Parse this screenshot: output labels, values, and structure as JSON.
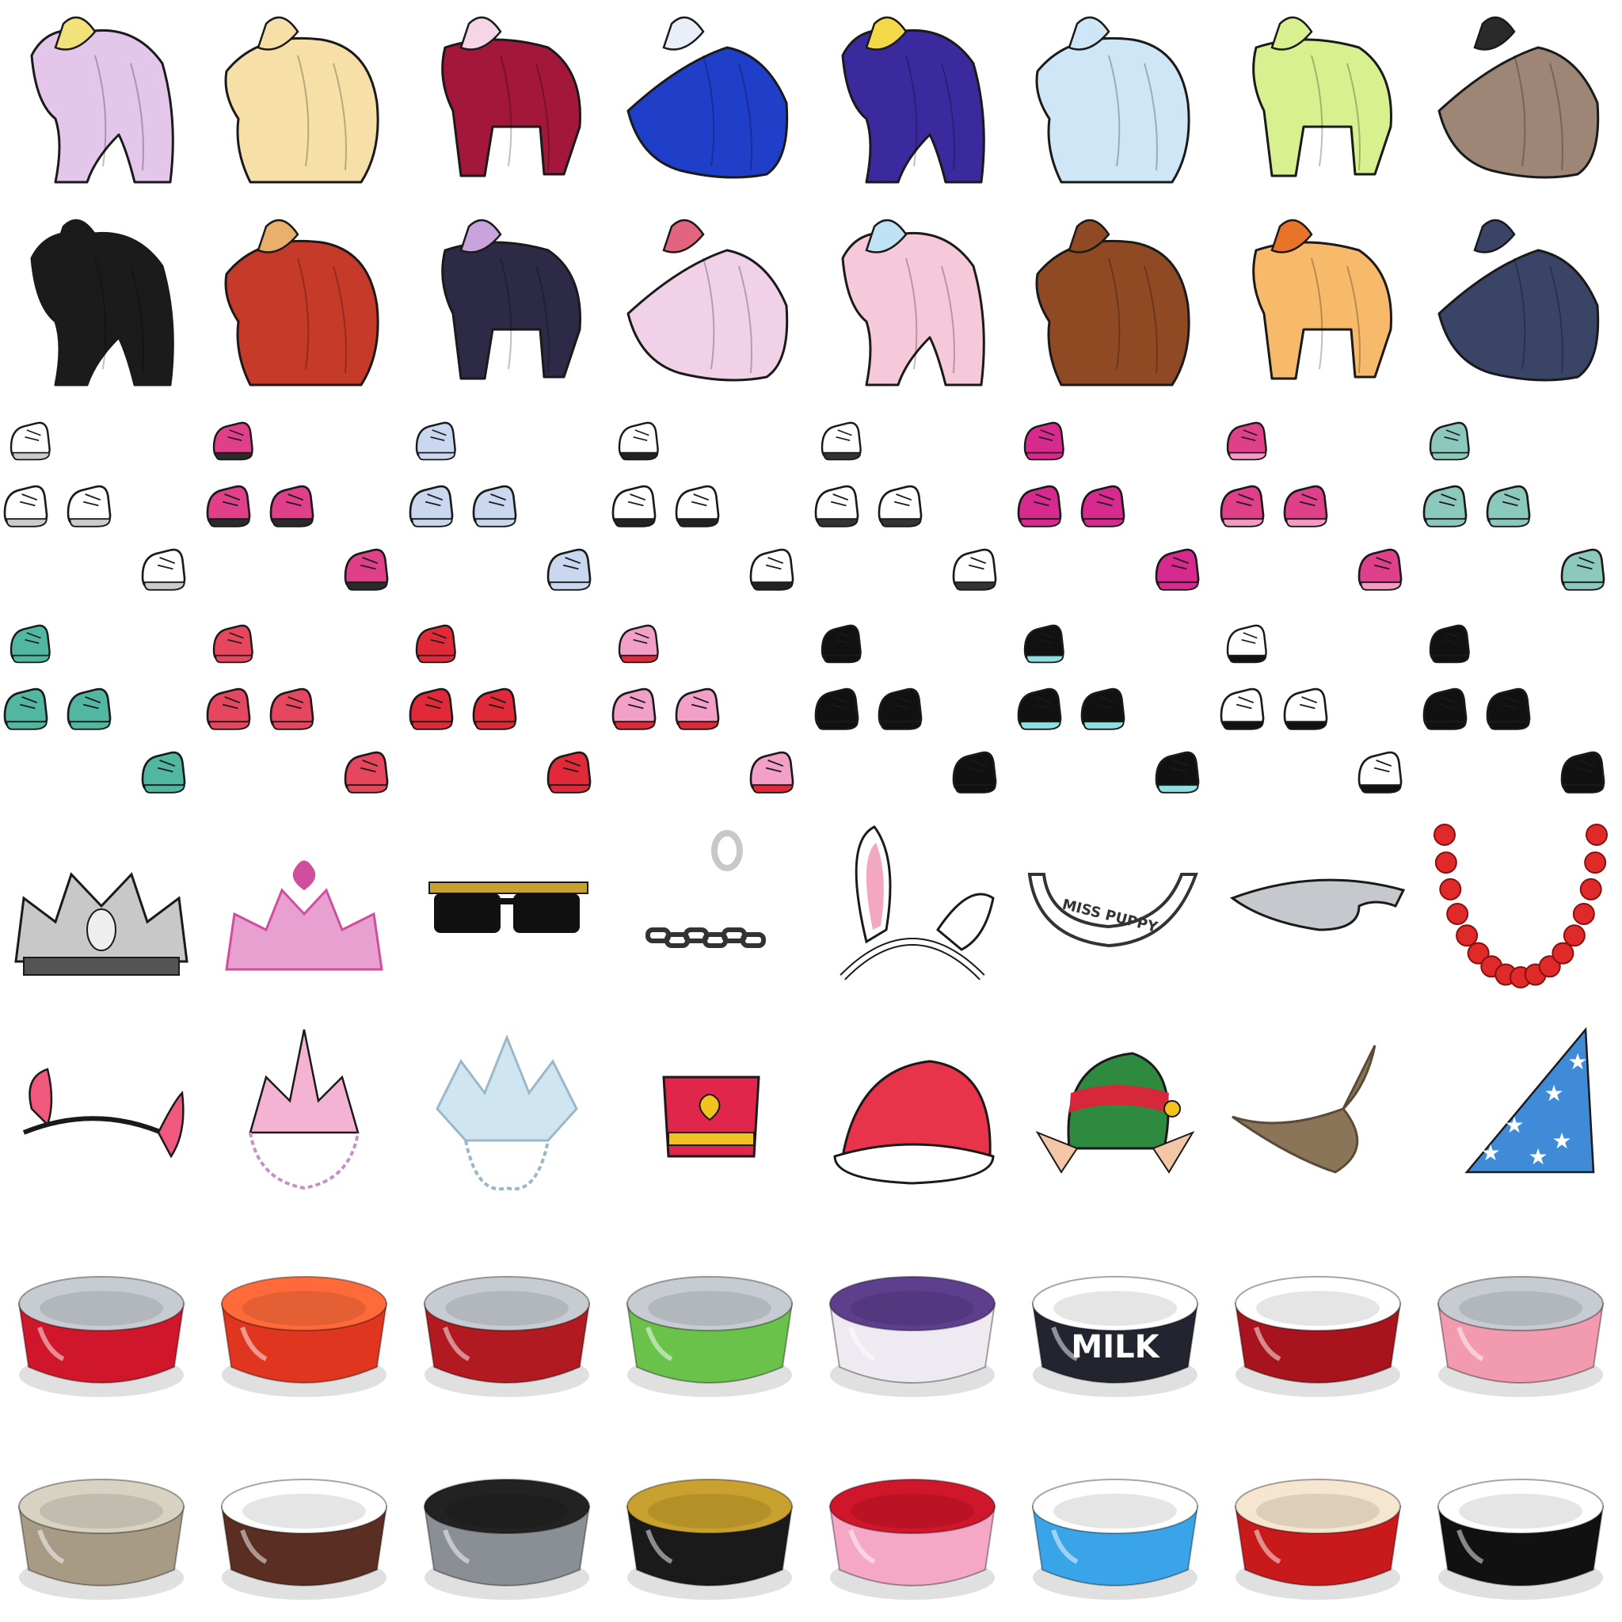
{
  "sprite_sheet": {
    "grid": {
      "columns": 8,
      "rows": 8
    },
    "rows": [
      {
        "category": "costumes",
        "items": [
          {
            "icon": "lilac-cape-costume",
            "colors": [
              "#e3c6ea",
              "#f2e27a"
            ]
          },
          {
            "icon": "cream-cape-costume",
            "colors": [
              "#f7dfa8",
              "#f7dfa8"
            ]
          },
          {
            "icon": "crimson-suit-costume",
            "colors": [
              "#a3173a",
              "#f6d6e6"
            ]
          },
          {
            "icon": "blue-suit-costume",
            "colors": [
              "#1f3fc8",
              "#e9eef8"
            ]
          },
          {
            "icon": "wizard-cape-star-costume",
            "colors": [
              "#3b2a9e",
              "#f3d84a"
            ]
          },
          {
            "icon": "fluffy-blue-costume",
            "colors": [
              "#cfe6f6",
              "#cfe6f6"
            ]
          },
          {
            "icon": "lime-bow-cape-costume",
            "colors": [
              "#d8f08e",
              "#d8f08e"
            ]
          },
          {
            "icon": "brown-tuxedo-costume",
            "colors": [
              "#9e8677",
              "#2a2a2a"
            ]
          }
        ]
      },
      {
        "category": "costumes",
        "items": [
          {
            "icon": "black-feather-costume",
            "colors": [
              "#1b1b1b",
              "#1b1b1b"
            ]
          },
          {
            "icon": "red-fur-coat-costume",
            "colors": [
              "#c63a2a",
              "#e8b06a"
            ]
          },
          {
            "icon": "dark-cloak-costume",
            "colors": [
              "#2d2a47",
              "#c9a3dc"
            ]
          },
          {
            "icon": "pink-jeweled-cape-costume",
            "colors": [
              "#f1d1e8",
              "#e3647e"
            ]
          },
          {
            "icon": "pink-fin-gown-costume",
            "colors": [
              "#f6c9da",
              "#bfe3f5"
            ]
          },
          {
            "icon": "brown-fringe-poncho-costume",
            "colors": [
              "#8f4a24",
              "#8f4a24"
            ]
          },
          {
            "icon": "golden-gown-costume",
            "colors": [
              "#f7b96a",
              "#e8742a"
            ]
          },
          {
            "icon": "navy-cape-costume",
            "colors": [
              "#3a4466",
              "#3a4466"
            ]
          }
        ]
      },
      {
        "category": "shoes",
        "items": [
          {
            "icon": "white-socks-shoes",
            "colors": [
              "#ffffff",
              "#cccccc"
            ]
          },
          {
            "icon": "pink-ruffle-boots-shoes",
            "colors": [
              "#e0408a",
              "#2a2a2a"
            ]
          },
          {
            "icon": "pale-blue-boots-shoes",
            "colors": [
              "#c9d8ef",
              "#c9d8ef"
            ]
          },
          {
            "icon": "saddle-sneakers-shoes",
            "colors": [
              "#ffffff",
              "#222222"
            ]
          },
          {
            "icon": "white-laced-shoes",
            "colors": [
              "#ffffff",
              "#333333"
            ]
          },
          {
            "icon": "magenta-laced-boots-shoes",
            "colors": [
              "#d62a8e",
              "#d62a8e"
            ]
          },
          {
            "icon": "sparkle-pink-boots-shoes",
            "colors": [
              "#e0408a",
              "#f59ac3"
            ]
          },
          {
            "icon": "mint-roller-skates-shoes",
            "colors": [
              "#8cc9bd",
              "#8cc9bd"
            ]
          }
        ]
      },
      {
        "category": "shoes",
        "items": [
          {
            "icon": "teal-clogs-shoes",
            "colors": [
              "#52b7a0",
              "#52b7a0"
            ]
          },
          {
            "icon": "coral-bow-shoes",
            "colors": [
              "#e6475f",
              "#e6475f"
            ]
          },
          {
            "icon": "red-slip-on-shoes",
            "colors": [
              "#e02a3a",
              "#e02a3a"
            ]
          },
          {
            "icon": "pink-star-boots-shoes",
            "colors": [
              "#f3a0c8",
              "#e02a3a"
            ]
          },
          {
            "icon": "black-bow-shoes",
            "colors": [
              "#111111",
              "#111111"
            ]
          },
          {
            "icon": "black-aqua-sock-shoes",
            "colors": [
              "#111111",
              "#8fe0e0"
            ]
          },
          {
            "icon": "white-hightop-shoes",
            "colors": [
              "#ffffff",
              "#111111"
            ]
          },
          {
            "icon": "black-laced-shoes",
            "colors": [
              "#111111",
              "#111111"
            ]
          }
        ]
      },
      {
        "category": "accessories",
        "items": [
          {
            "icon": "silver-tiara-icon",
            "colors": [
              "#c8c8c8",
              "#555555"
            ]
          },
          {
            "icon": "pink-tiara-icon",
            "colors": [
              "#e7a0d0",
              "#d04e9e"
            ]
          },
          {
            "icon": "chain-sunglasses-icon",
            "colors": [
              "#111111",
              "#c9a12e"
            ]
          },
          {
            "icon": "nose-ring-and-chain-icon",
            "colors": [
              "#c8c8c8",
              "#333333"
            ]
          },
          {
            "icon": "bunny-ears-headband-icon",
            "colors": [
              "#ffffff",
              "#f3a7c3"
            ]
          },
          {
            "icon": "miss-puppy-collar-icon",
            "colors": [
              "#ffffff",
              "#333333"
            ],
            "text": "MISS PUPPY"
          },
          {
            "icon": "silver-headband-icon",
            "colors": [
              "#c5c8cc",
              "#c5c8cc"
            ]
          },
          {
            "icon": "red-rose-garland-icon",
            "colors": [
              "#e02a2a",
              "#8a0f0f"
            ]
          }
        ]
      },
      {
        "category": "hats",
        "items": [
          {
            "icon": "pink-devil-horns-icon",
            "colors": [
              "#f0597d",
              "#f0597d"
            ]
          },
          {
            "icon": "pink-crystal-crown-icon",
            "colors": [
              "#f4b3d3",
              "#c98fc4"
            ]
          },
          {
            "icon": "ice-crystal-crown-icon",
            "colors": [
              "#cfe6f2",
              "#9bb8c8"
            ]
          },
          {
            "icon": "heart-band-hat-icon",
            "colors": [
              "#e0264a",
              "#f2c21e"
            ]
          },
          {
            "icon": "santa-hat-icon",
            "colors": [
              "#e8344a",
              "#ffffff"
            ]
          },
          {
            "icon": "elf-hat-icon",
            "colors": [
              "#2e8a3e",
              "#d6283a"
            ]
          },
          {
            "icon": "witch-hat-icon",
            "colors": [
              "#8a7558",
              "#5a4a36"
            ]
          },
          {
            "icon": "star-party-hat-icon",
            "colors": [
              "#3f8bd8",
              "#ffffff"
            ]
          }
        ]
      },
      {
        "category": "bowls",
        "items": [
          {
            "icon": "red-melamine-bowl-icon",
            "colors": [
              "#d0162a",
              "#c7ccd2"
            ]
          },
          {
            "icon": "red-plastic-bowl-icon",
            "colors": [
              "#e0351e",
              "#ff6a3a"
            ]
          },
          {
            "icon": "red-paw-steel-bowl-icon",
            "colors": [
              "#b01a20",
              "#c7ccd2"
            ]
          },
          {
            "icon": "green-steel-bowl-icon",
            "colors": [
              "#6ac24a",
              "#c7ccd2"
            ]
          },
          {
            "icon": "purple-paw-bowl-icon",
            "colors": [
              "#efeaf2",
              "#5e3f8e"
            ]
          },
          {
            "icon": "milk-bowl-icon",
            "colors": [
              "#222430",
              "#ffffff"
            ],
            "text": "MILK"
          },
          {
            "icon": "red-paw-ceramic-bowl-icon",
            "colors": [
              "#a8141e",
              "#ffffff"
            ]
          },
          {
            "icon": "pink-kitten-bowl-icon",
            "colors": [
              "#f29ab0",
              "#c7ccd2"
            ]
          }
        ]
      },
      {
        "category": "bowls",
        "items": [
          {
            "icon": "brass-steel-bowl-icon",
            "colors": [
              "#a79b86",
              "#d8d2c2"
            ]
          },
          {
            "icon": "polka-dot-bowl-icon",
            "colors": [
              "#5a2e22",
              "#ffffff"
            ]
          },
          {
            "icon": "steel-bowl-icon",
            "colors": [
              "#8a8f96",
              "#222222"
            ]
          },
          {
            "icon": "greek-key-bowl-icon",
            "colors": [
              "#1a1a1a",
              "#c9a12e"
            ]
          },
          {
            "icon": "pink-stripe-heart-bowl-icon",
            "colors": [
              "#f5a8c6",
              "#d0162a"
            ]
          },
          {
            "icon": "blue-bone-bowl-icon",
            "colors": [
              "#3aa4e8",
              "#ffffff"
            ]
          },
          {
            "icon": "red-cat-face-bowl-icon",
            "colors": [
              "#c81a1a",
              "#f6e6cf"
            ]
          },
          {
            "icon": "black-fish-bowl-icon",
            "colors": [
              "#111111",
              "#ffffff"
            ]
          }
        ]
      }
    ]
  }
}
